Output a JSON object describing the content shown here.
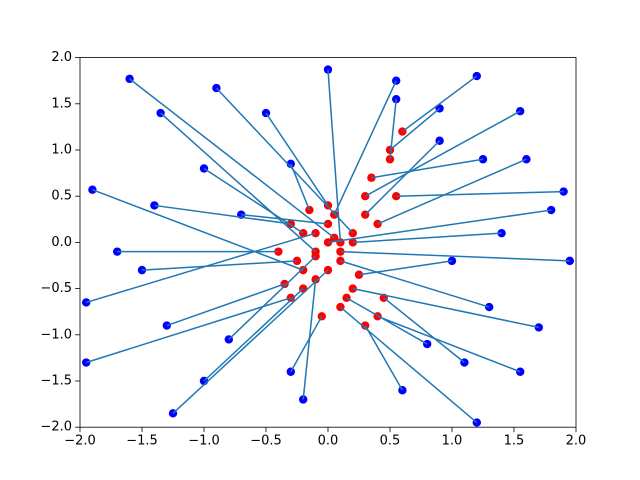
{
  "chart_data": {
    "type": "scatter",
    "xlim": [
      -2,
      2
    ],
    "ylim": [
      -2,
      2
    ],
    "xticks": [
      {
        "value": -2,
        "label": "−2.0"
      },
      {
        "value": -1.5,
        "label": "−1.5"
      },
      {
        "value": -1,
        "label": "−1.0"
      },
      {
        "value": -0.5,
        "label": "−0.5"
      },
      {
        "value": 0,
        "label": "0.0"
      },
      {
        "value": 0.5,
        "label": "0.5"
      },
      {
        "value": 1,
        "label": "1.0"
      },
      {
        "value": 1.5,
        "label": "1.5"
      },
      {
        "value": 2,
        "label": "2.0"
      }
    ],
    "yticks": [
      {
        "value": -2,
        "label": "−2.0"
      },
      {
        "value": -1.5,
        "label": "−1.5"
      },
      {
        "value": -1,
        "label": "−1.0"
      },
      {
        "value": -0.5,
        "label": "−0.5"
      },
      {
        "value": 0,
        "label": "0.0"
      },
      {
        "value": 0.5,
        "label": "0.5"
      },
      {
        "value": 1,
        "label": "1.0"
      },
      {
        "value": 1.5,
        "label": "1.5"
      },
      {
        "value": 2,
        "label": "2.0"
      }
    ],
    "line_color": "#1f77b4",
    "series": [
      {
        "color": "#ff0000",
        "x": [
          0.05,
          0.1,
          0.5,
          0.6,
          -0.1,
          0.2,
          0.3,
          0.0,
          -0.2,
          0.1,
          -0.1,
          0.2,
          -0.3,
          0.4,
          0.0,
          0.1,
          -0.2,
          0.3,
          -0.1,
          0.05,
          0.35,
          -0.3,
          -0.25,
          0.2,
          0.1,
          -0.1,
          0.0,
          0.3,
          0.15,
          -0.2,
          0.4,
          -0.05,
          0.5,
          -0.4,
          0.25,
          -0.35,
          0.0,
          0.45,
          -0.15,
          0.55
        ],
        "values": [
          0.05,
          0.0,
          0.9,
          1.2,
          -0.1,
          0.1,
          0.5,
          0.0,
          -0.3,
          -0.1,
          0.1,
          -0.5,
          -0.6,
          -0.8,
          -0.3,
          -0.7,
          -0.5,
          -0.9,
          -0.4,
          0.3,
          0.7,
          0.2,
          -0.2,
          0.0,
          -0.2,
          -0.15,
          0.4,
          0.3,
          -0.6,
          0.1,
          0.2,
          -0.8,
          1.0,
          -0.1,
          -0.35,
          -0.45,
          0.2,
          -0.6,
          0.35,
          0.5
        ]
      },
      {
        "color": "#0000ff",
        "x": [
          -1.6,
          0.0,
          0.55,
          1.2,
          -1.35,
          -0.9,
          1.55,
          1.8,
          -1.9,
          1.95,
          -1.95,
          1.7,
          -1.95,
          1.55,
          -1.25,
          1.2,
          -1.0,
          0.6,
          -0.2,
          0.55,
          1.25,
          -1.4,
          -1.5,
          1.4,
          1.3,
          -0.8,
          -0.5,
          0.9,
          0.8,
          -1.0,
          1.6,
          -0.3,
          0.9,
          -1.7,
          1.0,
          -1.3,
          -0.7,
          1.1,
          -0.3,
          1.9
        ],
        "values": [
          1.77,
          1.87,
          1.55,
          1.8,
          1.4,
          1.67,
          1.42,
          0.35,
          0.57,
          -0.2,
          -0.65,
          -0.92,
          -1.3,
          -1.4,
          -1.85,
          -1.95,
          -1.5,
          -1.6,
          -1.7,
          1.75,
          0.9,
          0.4,
          -0.3,
          0.1,
          -0.7,
          -1.05,
          1.4,
          1.1,
          -1.1,
          0.8,
          0.9,
          -1.4,
          1.45,
          -0.1,
          -0.2,
          -0.9,
          0.3,
          -1.3,
          0.85,
          0.55
        ]
      }
    ]
  }
}
